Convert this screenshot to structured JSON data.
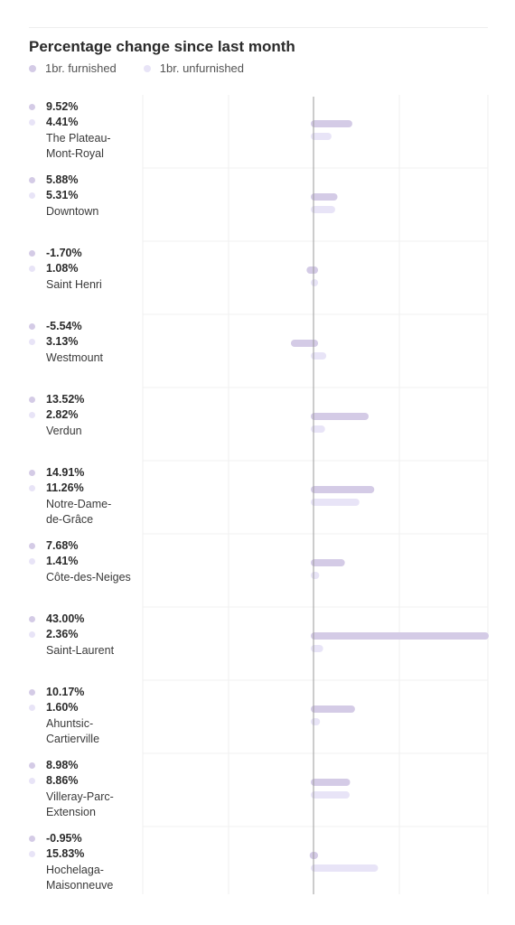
{
  "chart_data": {
    "type": "bar",
    "orientation": "horizontal",
    "title": "Percentage change since last month",
    "legend_position": "top-left",
    "grid": true,
    "xlim": [
      -10,
      43
    ],
    "series": [
      {
        "name": "1br. furnished",
        "color": "#d4cbe6",
        "values": [
          9.52,
          5.88,
          -1.7,
          -5.54,
          13.52,
          14.91,
          7.68,
          43.0,
          10.17,
          8.98,
          -0.95
        ],
        "labels": [
          "9.52%",
          "5.88%",
          "-1.70%",
          "-5.54%",
          "13.52%",
          "14.91%",
          "7.68%",
          "43.00%",
          "10.17%",
          "8.98%",
          "-0.95%"
        ]
      },
      {
        "name": "1br. unfurnished",
        "color": "#e8e4f7",
        "values": [
          4.41,
          5.31,
          1.08,
          3.13,
          2.82,
          11.26,
          1.41,
          2.36,
          1.6,
          8.86,
          15.83
        ],
        "labels": [
          "4.41%",
          "5.31%",
          "1.08%",
          "3.13%",
          "2.82%",
          "11.26%",
          "1.41%",
          "2.36%",
          "1.60%",
          "8.86%",
          "15.83%"
        ]
      }
    ],
    "categories": [
      "The Plateau-Mont-Royal",
      "Downtown",
      "Saint Henri",
      "Westmount",
      "Verdun",
      "Notre-Dame-de-Grâce",
      "Côte-des-Neiges",
      "Saint-Laurent",
      "Ahuntsic-Cartierville",
      "Villeray-Parc-Extension",
      "Hochelaga-Maisonneuve"
    ],
    "category_label_lines": [
      [
        "The Plateau-",
        "Mont-Royal"
      ],
      [
        "Downtown"
      ],
      [
        "Saint Henri"
      ],
      [
        "Westmount"
      ],
      [
        "Verdun"
      ],
      [
        "Notre-Dame-",
        "de-Grâce"
      ],
      [
        "Côte-des-Neiges"
      ],
      [
        "Saint-Laurent"
      ],
      [
        "Ahuntsic-",
        "Cartierville"
      ],
      [
        "Villeray-Parc-",
        "Extension"
      ],
      [
        "Hochelaga-",
        "Maisonneuve"
      ]
    ]
  }
}
